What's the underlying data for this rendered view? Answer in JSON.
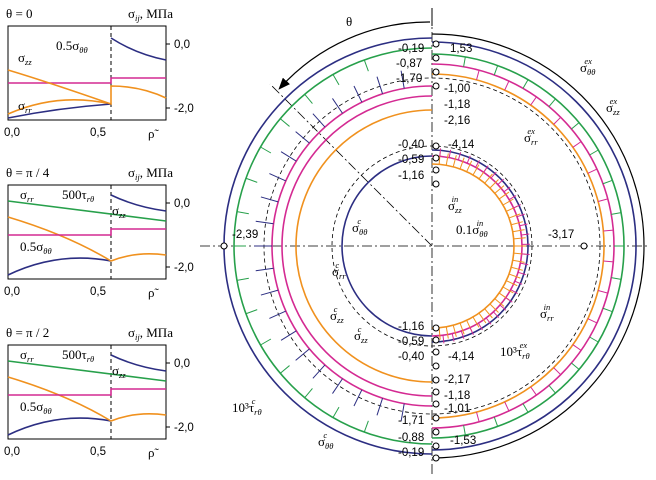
{
  "colors": {
    "navy": "#2c2e82",
    "orange": "#f0911e",
    "magenta": "#d42a92",
    "green": "#27a04b",
    "black": "#000000",
    "gray": "#9a9a9a"
  },
  "panels": [
    {
      "theta_label": "θ = 0",
      "sigma_label": "σ",
      "sigma_sub": "ij",
      "unit_label": ", МПа",
      "y_tick_top": "0,0",
      "y_tick_bottom": "-2,0",
      "x_ticks": [
        "0,0",
        "0,5",
        "ρ̃"
      ],
      "curve_labels": [
        {
          "main": "σ",
          "sub": "zz",
          "extra": ""
        },
        {
          "main": "0.5σ",
          "sub": "θθ",
          "extra": ""
        },
        {
          "main": "σ",
          "sub": "rr",
          "extra": ""
        }
      ]
    },
    {
      "theta_label": "θ = π / 4",
      "sigma_label": "σ",
      "sigma_sub": "ij",
      "unit_label": ", МПа",
      "y_tick_top": "0,0",
      "y_tick_bottom": "-2,0",
      "x_ticks": [
        "0,0",
        "0,5",
        "ρ̃"
      ],
      "curve_labels": [
        {
          "main": "σ",
          "sub": "rr",
          "extra": ""
        },
        {
          "main": "500τ",
          "sub": "rθ",
          "extra": ""
        },
        {
          "main": "σ",
          "sub": "zz",
          "extra": ""
        },
        {
          "main": "0.5σ",
          "sub": "θθ",
          "extra": ""
        }
      ]
    },
    {
      "theta_label": "θ = π / 2",
      "sigma_label": "σ",
      "sigma_sub": "ij",
      "unit_label": ", МПа",
      "y_tick_top": "0,0",
      "y_tick_bottom": "-2,0",
      "x_ticks": [
        "0,0",
        "0,5",
        "ρ̃"
      ],
      "curve_labels": [
        {
          "main": "σ",
          "sub": "rr",
          "extra": ""
        },
        {
          "main": "500τ",
          "sub": "rθ",
          "extra": ""
        },
        {
          "main": "σ",
          "sub": "zz",
          "extra": ""
        },
        {
          "main": "0.5σ",
          "sub": "θθ",
          "extra": ""
        }
      ]
    }
  ],
  "polar": {
    "theta_label": "θ",
    "left_value": "-2,39",
    "right_value": "-3,17",
    "top_values": [
      "-0,19",
      "1,53",
      "-0,87",
      "-1,70",
      "-1,00",
      "-1,18",
      "-2,16",
      "-0,40",
      "-4,14",
      "-0,59",
      "-1,16"
    ],
    "bottom_values": [
      "-1,16",
      "-0,59",
      "-0,40",
      "-4,14",
      "-2,17",
      "-1,18",
      "-1,01",
      "-1,71",
      "-0,88",
      "-1,53",
      "-0,19"
    ],
    "labels": {
      "s_tt_ex": {
        "main": "σ",
        "sub": "θθ",
        "sup": "ex",
        "prefix": ""
      },
      "s_zz_ex": {
        "main": "σ",
        "sub": "zz",
        "sup": "ex",
        "prefix": ""
      },
      "s_rr_ex": {
        "main": "σ",
        "sub": "rr",
        "sup": "ex",
        "prefix": ""
      },
      "s_zz_in": {
        "main": "σ",
        "sub": "zz",
        "sup": "in",
        "prefix": ""
      },
      "s_tt_in": {
        "main": "σ",
        "sub": "θθ",
        "sup": "in",
        "prefix": "0.1"
      },
      "s_tt_c": {
        "main": "σ",
        "sub": "θθ",
        "sup": "c",
        "prefix": ""
      },
      "s_rr_c": {
        "main": "σ",
        "sub": "rr",
        "sup": "c",
        "prefix": ""
      },
      "s_zz_c": {
        "main": "σ",
        "sub": "zz",
        "sup": "c",
        "prefix": ""
      },
      "s_zz_c2": {
        "main": "σ",
        "sub": "zz",
        "sup": "c",
        "prefix": ""
      },
      "s_rr_in": {
        "main": "σ",
        "sub": "rr",
        "sup": "in",
        "prefix": ""
      },
      "t_rt_ex": {
        "main": "τ",
        "sub": "rθ",
        "sup": "ex",
        "prefix": "10³"
      },
      "t_rt_c": {
        "main": "τ",
        "sub": "rθ",
        "sup": "c",
        "prefix": "10³"
      },
      "s_tt_c2": {
        "main": "σ",
        "sub": "θθ",
        "sup": "c",
        "prefix": ""
      }
    }
  }
}
